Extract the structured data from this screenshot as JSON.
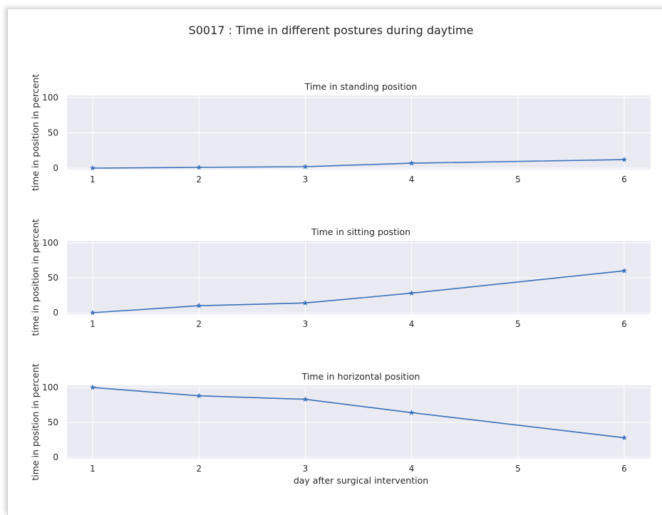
{
  "figure": {
    "suptitle": "S0017 :  Time in different postures during daytime",
    "plot_bg": "#eaeaf2",
    "line_color": "#3a70b9"
  },
  "chart_data": [
    {
      "type": "line",
      "title": "Time in standing position",
      "xlabel": "",
      "ylabel": "time in position in percent",
      "x": [
        1,
        2,
        3,
        4,
        5,
        6
      ],
      "xticks": [
        "1",
        "2",
        "3",
        "4",
        "5",
        "6"
      ],
      "yticks": [
        "0",
        "50",
        "100"
      ],
      "ylim": [
        -2,
        103
      ],
      "series": [
        {
          "points_x": [
            1,
            2,
            3,
            4,
            6
          ],
          "points_y": [
            0,
            1,
            2,
            7,
            12
          ],
          "marker": "star"
        }
      ],
      "grid": true
    },
    {
      "type": "line",
      "title": "Time in sitting postion",
      "xlabel": "",
      "ylabel": "time in position in percent",
      "x": [
        1,
        2,
        3,
        4,
        5,
        6
      ],
      "xticks": [
        "1",
        "2",
        "3",
        "4",
        "5",
        "6"
      ],
      "yticks": [
        "0",
        "50",
        "100"
      ],
      "ylim": [
        -2,
        103
      ],
      "series": [
        {
          "points_x": [
            1,
            2,
            3,
            4,
            6
          ],
          "points_y": [
            0,
            10,
            14,
            28,
            60
          ],
          "marker": "star"
        }
      ],
      "grid": true
    },
    {
      "type": "line",
      "title": "Time in horizontal position",
      "xlabel": "day after surgical intervention",
      "ylabel": "time in position in percent",
      "x": [
        1,
        2,
        3,
        4,
        5,
        6
      ],
      "xticks": [
        "1",
        "2",
        "3",
        "4",
        "5",
        "6"
      ],
      "yticks": [
        "0",
        "50",
        "100"
      ],
      "ylim": [
        -2,
        103
      ],
      "series": [
        {
          "points_x": [
            1,
            2,
            3,
            4,
            6
          ],
          "points_y": [
            100,
            88,
            83,
            64,
            28
          ],
          "marker": "star"
        }
      ],
      "grid": true
    }
  ]
}
